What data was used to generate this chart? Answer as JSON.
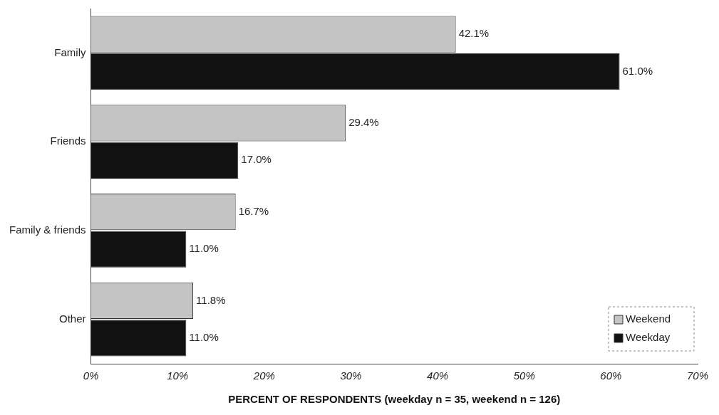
{
  "chart_data": {
    "type": "bar",
    "orientation": "horizontal",
    "xlabel": "PERCENT OF RESPONDENTS (weekday n = 35, weekend n = 126)",
    "categories": [
      "Family",
      "Friends",
      "Family & friends",
      "Other"
    ],
    "series": [
      {
        "name": "Weekend",
        "color": "#c4c4c4",
        "values": [
          42.1,
          29.4,
          16.7,
          11.8
        ],
        "value_labels": [
          "42.1%",
          "29.4%",
          "16.7%",
          "11.8%"
        ]
      },
      {
        "name": "Weekday",
        "color": "#111111",
        "values": [
          61.0,
          17.0,
          11.0,
          11.0
        ],
        "value_labels": [
          "61.0%",
          "17.0%",
          "11.0%",
          "11.0%"
        ]
      }
    ],
    "xlim": [
      0,
      70
    ],
    "xticks": [
      {
        "value": 0,
        "label": "0%"
      },
      {
        "value": 10,
        "label": "10%"
      },
      {
        "value": 20,
        "label": "20%"
      },
      {
        "value": 30,
        "label": "30%"
      },
      {
        "value": 40,
        "label": "40%"
      },
      {
        "value": 50,
        "label": "50%"
      },
      {
        "value": 60,
        "label": "60%"
      },
      {
        "value": 70,
        "label": "70%"
      }
    ],
    "grid": false,
    "legend": "bottom right"
  }
}
